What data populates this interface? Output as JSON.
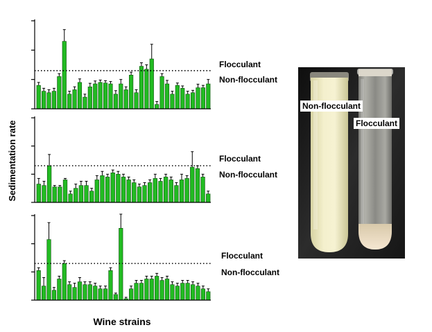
{
  "y_axis_label": "Sedimentation rate",
  "x_axis_label": "Wine strains",
  "colors": {
    "bar": "#22bb22",
    "bar_edge": "#0d4d0d",
    "axis": "#000000"
  },
  "chart_data": [
    {
      "type": "bar",
      "panel": "top",
      "threshold_value": 1.3,
      "threshold_labels": {
        "above": "Flocculant",
        "below": "Non-flocculant"
      },
      "ylim": [
        0,
        3
      ],
      "yticks": [
        0,
        1,
        2,
        3
      ],
      "grid": false,
      "values": [
        0.8,
        0.6,
        0.55,
        0.6,
        1.1,
        2.3,
        0.5,
        0.65,
        0.9,
        0.4,
        0.75,
        0.85,
        0.9,
        0.88,
        0.85,
        0.5,
        0.85,
        0.65,
        1.15,
        0.55,
        1.45,
        1.35,
        1.7,
        0.15,
        1.1,
        0.85,
        0.5,
        0.8,
        0.7,
        0.5,
        0.55,
        0.72,
        0.72,
        0.85
      ],
      "errors": [
        0.1,
        0.1,
        0.1,
        0.1,
        0.1,
        0.4,
        0.1,
        0.1,
        0.12,
        0.1,
        0.12,
        0.1,
        0.08,
        0.08,
        0.08,
        0.12,
        0.15,
        0.1,
        0.1,
        0.1,
        0.12,
        0.15,
        0.5,
        0.1,
        0.1,
        0.12,
        0.1,
        0.08,
        0.08,
        0.1,
        0.08,
        0.12,
        0.08,
        0.15
      ]
    },
    {
      "type": "bar",
      "panel": "middle",
      "threshold_value": 1.3,
      "threshold_labels": {
        "above": "Flocculant",
        "below": "Non-flocculant"
      },
      "ylim": [
        0,
        3
      ],
      "yticks": [
        0,
        1,
        2,
        3
      ],
      "grid": false,
      "values": [
        0.65,
        0.6,
        1.3,
        0.55,
        0.55,
        0.8,
        0.3,
        0.5,
        0.6,
        0.6,
        0.4,
        0.8,
        0.95,
        0.9,
        1.05,
        1.0,
        0.9,
        0.8,
        0.7,
        0.55,
        0.6,
        0.7,
        0.85,
        0.75,
        0.9,
        0.8,
        0.6,
        0.8,
        0.85,
        1.25,
        1.2,
        0.9,
        0.3
      ],
      "errors": [
        0.2,
        0.15,
        0.4,
        0.05,
        0.05,
        0.05,
        0.1,
        0.15,
        0.15,
        0.15,
        0.1,
        0.15,
        0.15,
        0.1,
        0.1,
        0.1,
        0.1,
        0.1,
        0.1,
        0.1,
        0.1,
        0.1,
        0.15,
        0.1,
        0.1,
        0.1,
        0.1,
        0.2,
        0.1,
        0.55,
        0.1,
        0.1,
        0.1
      ]
    },
    {
      "type": "bar",
      "panel": "bottom",
      "threshold_value": 1.3,
      "threshold_labels": {
        "above": "Flocculant",
        "below": "Non-flocculant"
      },
      "ylim": [
        0,
        3
      ],
      "yticks": [
        0,
        1,
        2,
        3
      ],
      "grid": false,
      "values": [
        1.05,
        0.5,
        2.15,
        0.35,
        0.75,
        1.3,
        0.55,
        0.45,
        0.65,
        0.55,
        0.55,
        0.5,
        0.4,
        0.4,
        1.05,
        0.2,
        2.55,
        0.05,
        0.4,
        0.6,
        0.6,
        0.75,
        0.75,
        0.85,
        0.7,
        0.75,
        0.55,
        0.5,
        0.6,
        0.6,
        0.55,
        0.5,
        0.4,
        0.3
      ],
      "errors": [
        0.1,
        0.3,
        0.6,
        0.1,
        0.1,
        0.1,
        0.1,
        0.15,
        0.15,
        0.1,
        0.1,
        0.1,
        0.1,
        0.1,
        0.1,
        0.05,
        0.5,
        0.05,
        0.1,
        0.1,
        0.1,
        0.1,
        0.1,
        0.1,
        0.1,
        0.1,
        0.1,
        0.1,
        0.1,
        0.1,
        0.1,
        0.1,
        0.1,
        0.1
      ]
    }
  ],
  "photo": {
    "label_left_tube": "Non-flocculant",
    "label_right_tube": "Flocculant"
  }
}
